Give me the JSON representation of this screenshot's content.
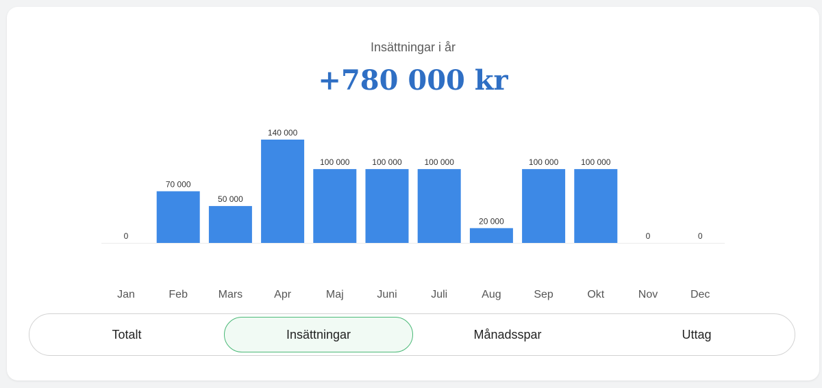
{
  "header": {
    "subtitle": "Insättningar i år",
    "total": "+780 000 kr"
  },
  "colors": {
    "bar": "#3d89e6",
    "accent": "#2f6fc4",
    "active_tab_border": "#49b876",
    "active_tab_bg": "#f1faf4"
  },
  "chart_data": {
    "type": "bar",
    "categories": [
      "Jan",
      "Feb",
      "Mars",
      "Apr",
      "Maj",
      "Juni",
      "Juli",
      "Aug",
      "Sep",
      "Okt",
      "Nov",
      "Dec"
    ],
    "values": [
      0,
      70000,
      50000,
      140000,
      100000,
      100000,
      100000,
      20000,
      100000,
      100000,
      0,
      0
    ],
    "data_labels": [
      "0",
      "70 000",
      "50 000",
      "140 000",
      "100 000",
      "100 000",
      "100 000",
      "20 000",
      "100 000",
      "100 000",
      "0",
      "0"
    ],
    "ylim": [
      0,
      140000
    ],
    "grid": false,
    "legend": "none"
  },
  "tabs": [
    {
      "label": "Totalt",
      "active": false
    },
    {
      "label": "Insättningar",
      "active": true
    },
    {
      "label": "Månadsspar",
      "active": false
    },
    {
      "label": "Uttag",
      "active": false
    }
  ]
}
